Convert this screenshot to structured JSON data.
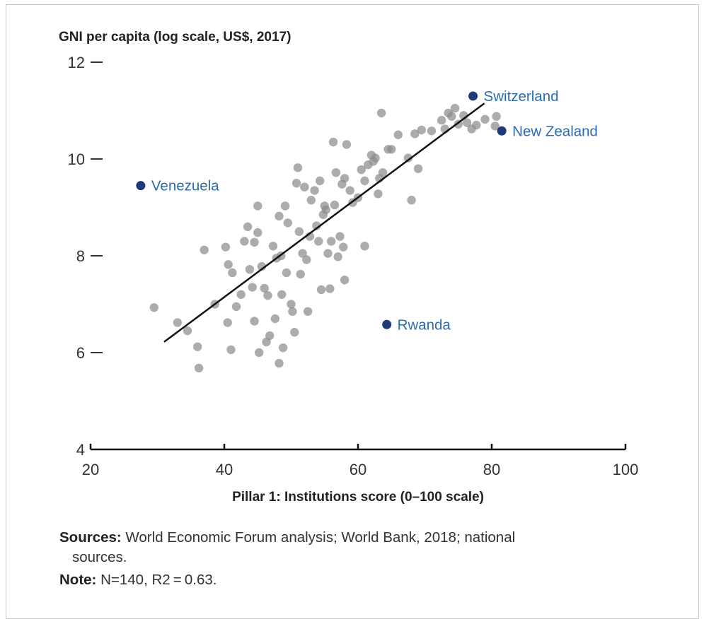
{
  "chart_data": {
    "type": "scatter",
    "title": "",
    "ylabel": "GNI per capita (log scale, US$, 2017)",
    "xlabel": "Pillar 1: Institutions score (0–100 scale)",
    "xlim": [
      20,
      100
    ],
    "ylim": [
      4,
      12
    ],
    "xticks": [
      "20",
      "40",
      "60",
      "80",
      "100"
    ],
    "yticks": [
      "4",
      "6",
      "8",
      "10",
      "12"
    ],
    "colors": {
      "points": "#8c8c8c",
      "highlight": "#1f3a7a",
      "label": "#2b6cb0",
      "line": "#111111"
    },
    "trendline": {
      "x": [
        31,
        78.9
      ],
      "y": [
        6.22,
        11.15
      ]
    },
    "highlighted": [
      {
        "name": "Switzerland",
        "x": 77.2,
        "y": 11.3
      },
      {
        "name": "New Zealand",
        "x": 81.5,
        "y": 10.58
      },
      {
        "name": "Venezuela",
        "x": 27.5,
        "y": 9.45
      },
      {
        "name": "Rwanda",
        "x": 64.3,
        "y": 6.58
      }
    ],
    "points": [
      [
        29.5,
        6.93
      ],
      [
        33,
        6.62
      ],
      [
        34.5,
        6.45
      ],
      [
        36,
        6.12
      ],
      [
        36.2,
        5.68
      ],
      [
        37,
        8.12
      ],
      [
        38.6,
        7.0
      ],
      [
        40.2,
        8.18
      ],
      [
        40.6,
        7.82
      ],
      [
        41.2,
        7.65
      ],
      [
        40.5,
        6.62
      ],
      [
        41,
        6.06
      ],
      [
        41.8,
        6.95
      ],
      [
        42.5,
        7.2
      ],
      [
        43,
        8.3
      ],
      [
        43.5,
        8.6
      ],
      [
        43.8,
        7.72
      ],
      [
        44.2,
        7.35
      ],
      [
        44.5,
        6.65
      ],
      [
        44.5,
        8.28
      ],
      [
        45,
        8.48
      ],
      [
        45,
        9.03
      ],
      [
        45.2,
        6.0
      ],
      [
        45.6,
        7.78
      ],
      [
        46,
        7.33
      ],
      [
        46.5,
        7.18
      ],
      [
        46.3,
        6.22
      ],
      [
        46.8,
        6.35
      ],
      [
        47.3,
        8.2
      ],
      [
        47.6,
        6.7
      ],
      [
        47.8,
        7.95
      ],
      [
        48.2,
        8.82
      ],
      [
        48.5,
        8.0
      ],
      [
        48.6,
        7.2
      ],
      [
        48.8,
        6.1
      ],
      [
        48.2,
        5.78
      ],
      [
        49.1,
        9.03
      ],
      [
        49.3,
        7.65
      ],
      [
        49.5,
        8.68
      ],
      [
        50,
        7.0
      ],
      [
        50.2,
        6.85
      ],
      [
        50.5,
        6.42
      ],
      [
        50.8,
        9.5
      ],
      [
        51,
        9.82
      ],
      [
        51.2,
        8.5
      ],
      [
        51.4,
        7.62
      ],
      [
        51.7,
        8.05
      ],
      [
        52,
        9.42
      ],
      [
        52.3,
        7.92
      ],
      [
        52.5,
        6.85
      ],
      [
        52.8,
        8.4
      ],
      [
        53,
        9.15
      ],
      [
        53.5,
        9.35
      ],
      [
        53.8,
        8.62
      ],
      [
        54.1,
        8.3
      ],
      [
        54.3,
        9.55
      ],
      [
        54.5,
        7.3
      ],
      [
        54.8,
        8.85
      ],
      [
        55,
        9.03
      ],
      [
        55.2,
        8.95
      ],
      [
        55.5,
        8.05
      ],
      [
        55.8,
        7.32
      ],
      [
        56,
        8.3
      ],
      [
        56.3,
        10.35
      ],
      [
        56.5,
        9.05
      ],
      [
        56.7,
        9.72
      ],
      [
        57,
        7.98
      ],
      [
        57.3,
        8.4
      ],
      [
        57.6,
        9.48
      ],
      [
        57.8,
        8.18
      ],
      [
        58,
        9.6
      ],
      [
        58,
        7.5
      ],
      [
        58.3,
        10.3
      ],
      [
        58.8,
        9.35
      ],
      [
        59.2,
        9.1
      ],
      [
        60,
        9.2
      ],
      [
        60.5,
        9.78
      ],
      [
        61,
        9.55
      ],
      [
        61,
        8.2
      ],
      [
        61.5,
        9.88
      ],
      [
        62,
        10.08
      ],
      [
        62.3,
        9.95
      ],
      [
        62.6,
        10.02
      ],
      [
        63,
        9.28
      ],
      [
        63.2,
        9.6
      ],
      [
        63.5,
        10.95
      ],
      [
        63.7,
        9.72
      ],
      [
        64.5,
        10.2
      ],
      [
        65,
        10.2
      ],
      [
        66,
        10.5
      ],
      [
        67.5,
        10.02
      ],
      [
        68,
        9.15
      ],
      [
        68.5,
        10.52
      ],
      [
        69,
        9.8
      ],
      [
        69.5,
        10.6
      ],
      [
        71,
        10.58
      ],
      [
        72.5,
        10.8
      ],
      [
        73,
        10.62
      ],
      [
        73.5,
        10.95
      ],
      [
        74,
        10.88
      ],
      [
        74.5,
        11.05
      ],
      [
        75,
        10.72
      ],
      [
        75.8,
        10.9
      ],
      [
        76.3,
        10.75
      ],
      [
        77,
        10.62
      ],
      [
        77.7,
        10.7
      ],
      [
        79,
        10.82
      ],
      [
        80.5,
        10.68
      ],
      [
        80.7,
        10.88
      ]
    ]
  },
  "notes": {
    "sources_label": "Sources:",
    "sources_text": " World Economic Forum analysis; World Bank, 2018; national",
    "sources_cont": "sources.",
    "note_label": "Note:",
    "note_text": " N=140, R2 = 0.63."
  }
}
